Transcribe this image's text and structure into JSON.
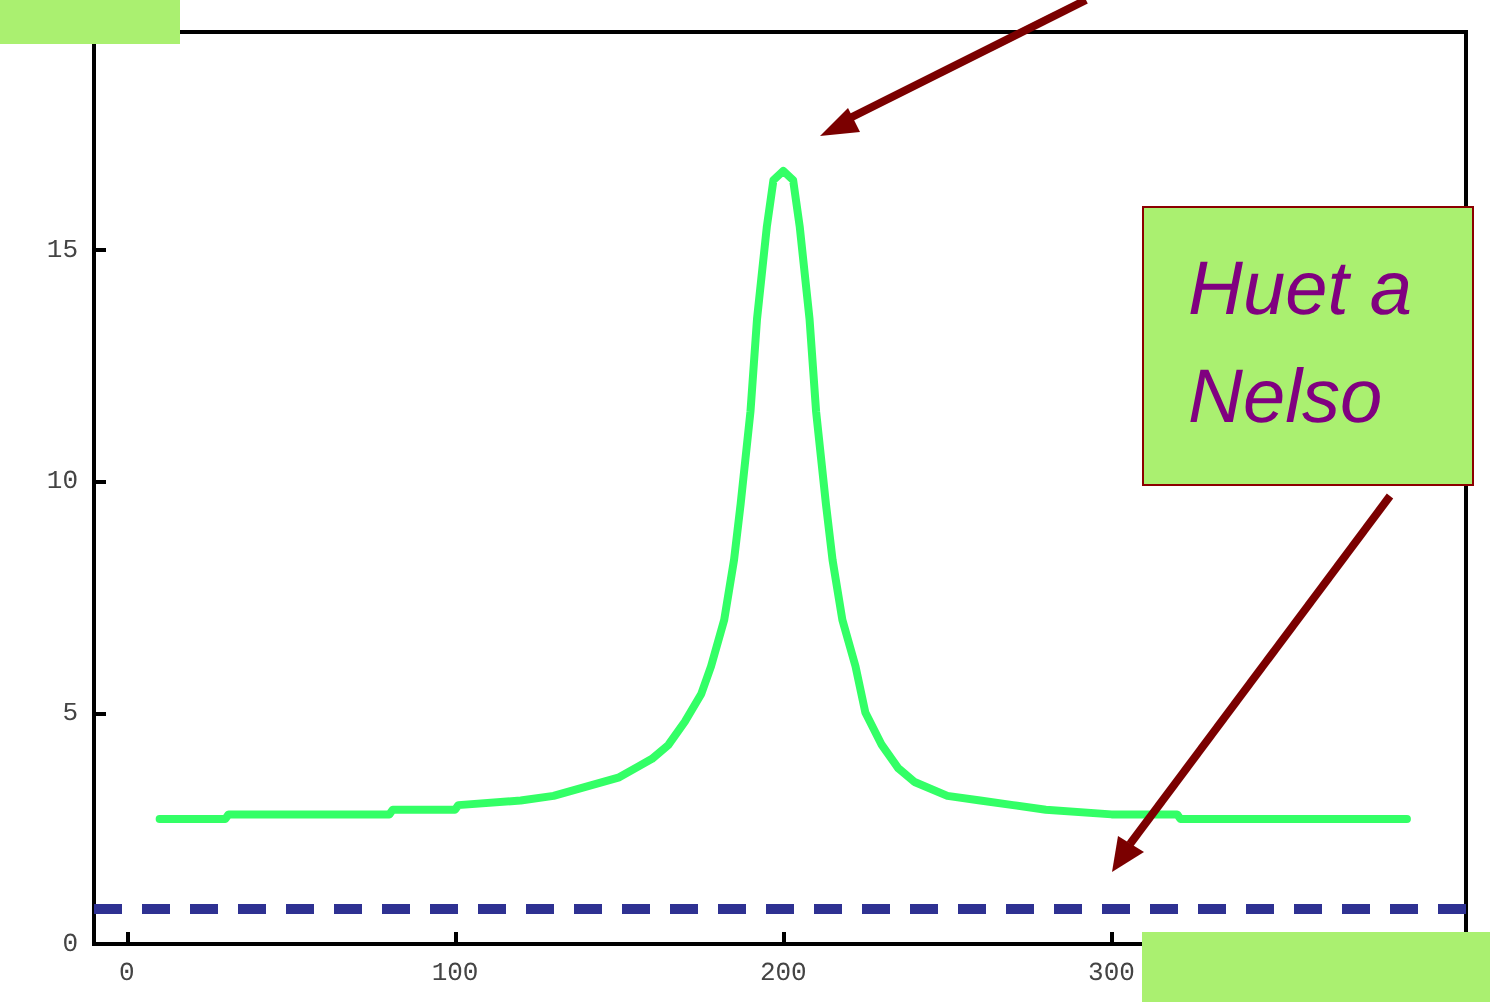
{
  "chart_data": {
    "type": "line",
    "xlim": [
      -10,
      408
    ],
    "ylim": [
      0,
      19.7
    ],
    "xticks": [
      0,
      100,
      200,
      300
    ],
    "yticks": [
      0,
      5,
      10,
      15
    ],
    "grid": false,
    "marker": "none",
    "line_style": "solid",
    "series": [
      {
        "color": "#33ff66",
        "x": [
          10,
          30,
          31,
          80,
          81,
          100,
          101,
          120,
          130,
          140,
          150,
          160,
          165,
          170,
          175,
          178,
          182,
          185,
          187,
          190,
          192,
          195,
          197,
          200,
          203,
          205,
          208,
          210,
          213,
          215,
          218,
          222,
          225,
          230,
          235,
          240,
          250,
          260,
          270,
          280,
          300,
          320,
          321,
          390
        ],
        "values": [
          2.7,
          2.7,
          2.8,
          2.8,
          2.9,
          2.9,
          3.0,
          3.1,
          3.2,
          3.4,
          3.6,
          4.0,
          4.3,
          4.8,
          5.4,
          6.0,
          7.0,
          8.3,
          9.5,
          11.5,
          13.5,
          15.5,
          16.5,
          16.7,
          16.5,
          15.5,
          13.5,
          11.5,
          9.5,
          8.3,
          7.0,
          6.0,
          5.0,
          4.3,
          3.8,
          3.5,
          3.2,
          3.1,
          3.0,
          2.9,
          2.8,
          2.8,
          2.7,
          2.7
        ]
      }
    ],
    "ref_lines": [
      {
        "axis": "y",
        "value": 0.75,
        "color": "#2e3192",
        "line_style": "dashed"
      }
    ],
    "annotations": [
      "Huet a\nNelso"
    ]
  }
}
